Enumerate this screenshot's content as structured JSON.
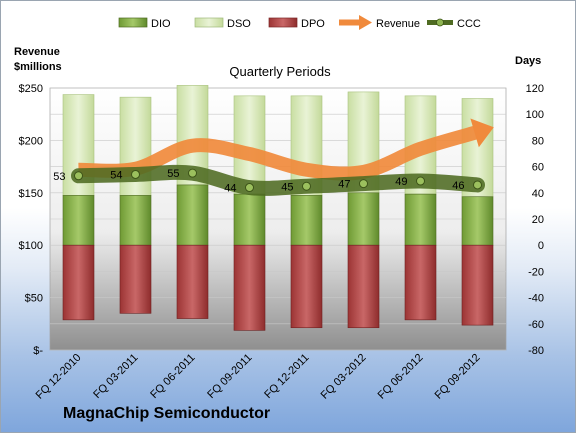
{
  "company": "MagnaChip Semiconductor",
  "chart_data": {
    "type": "bar",
    "title": "Quarterly Periods",
    "categories": [
      "FQ 12-2010",
      "FQ 03-2011",
      "FQ 06-2011",
      "FQ 09-2011",
      "FQ 12-2011",
      "FQ 03-2012",
      "FQ 06-2012",
      "FQ 09-2012"
    ],
    "left_axis": {
      "label_lines": [
        "Revenue",
        "$millions"
      ],
      "ticks": [
        "$-",
        "$50",
        "$100",
        "$150",
        "$200",
        "$250"
      ],
      "range": [
        0,
        250
      ]
    },
    "right_axis": {
      "label": "Days",
      "ticks": [
        "-80",
        "-60",
        "-40",
        "-20",
        "0",
        "20",
        "40",
        "60",
        "80",
        "100",
        "120"
      ],
      "range": [
        -80,
        120
      ]
    },
    "series": [
      {
        "name": "DIO",
        "axis": "days",
        "values": [
          38,
          38,
          46,
          39,
          38,
          40,
          39,
          37
        ],
        "color": "#77a33a"
      },
      {
        "name": "DSO",
        "axis": "days",
        "values": [
          77,
          75,
          76,
          75,
          76,
          77,
          75,
          75
        ],
        "color": "#d4e7ad"
      },
      {
        "name": "DPO",
        "axis": "days",
        "values": [
          -57,
          -52,
          -56,
          -65,
          -63,
          -63,
          -57,
          -61
        ],
        "color": "#a83a3a"
      },
      {
        "name": "Revenue",
        "axis": "revenue",
        "values": [
          172,
          173,
          195,
          187,
          172,
          170,
          192,
          208
        ],
        "color": "#f08a3c"
      },
      {
        "name": "CCC",
        "axis": "days",
        "values": [
          53,
          54,
          55,
          44,
          45,
          47,
          49,
          46
        ],
        "color": "#4f6b22"
      }
    ],
    "ccc_labels": [
      "53",
      "54",
      "55",
      "44",
      "45",
      "47",
      "49",
      "46"
    ],
    "legend_position": "top",
    "grid": true
  }
}
